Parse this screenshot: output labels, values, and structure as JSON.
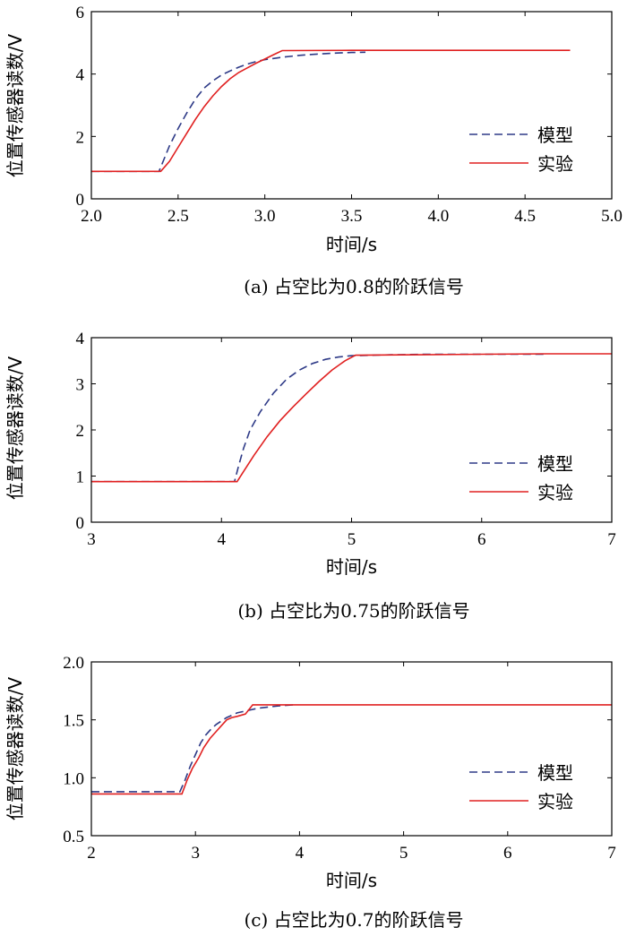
{
  "chart_data": [
    {
      "type": "line",
      "caption": "(a) 占空比为0.8的阶跃信号",
      "xlabel": "时间/s",
      "ylabel": "位置传感器读数/V",
      "xlim": [
        2.0,
        5.0
      ],
      "ylim": [
        0,
        6
      ],
      "xticks": [
        2.0,
        2.5,
        3.0,
        3.5,
        4.0,
        4.5,
        5.0
      ],
      "xtick_labels": [
        "2.0",
        "2.5",
        "3.0",
        "3.5",
        "4.0",
        "4.5",
        "5.0"
      ],
      "yticks": [
        0,
        2,
        4,
        6
      ],
      "ytick_labels": [
        "0",
        "2",
        "4",
        "6"
      ],
      "legend_position": "right",
      "grid": false,
      "series": [
        {
          "name": "模型",
          "color": "#2e3a87",
          "dash": true,
          "points": [
            [
              2.0,
              0.88
            ],
            [
              2.39,
              0.88
            ],
            [
              2.41,
              1.15
            ],
            [
              2.45,
              1.7
            ],
            [
              2.5,
              2.25
            ],
            [
              2.55,
              2.75
            ],
            [
              2.6,
              3.2
            ],
            [
              2.65,
              3.55
            ],
            [
              2.7,
              3.78
            ],
            [
              2.75,
              3.97
            ],
            [
              2.8,
              4.1
            ],
            [
              2.85,
              4.22
            ],
            [
              2.9,
              4.32
            ],
            [
              2.95,
              4.4
            ],
            [
              3.0,
              4.46
            ],
            [
              3.05,
              4.5
            ],
            [
              3.1,
              4.54
            ],
            [
              3.2,
              4.6
            ],
            [
              3.3,
              4.64
            ],
            [
              3.4,
              4.67
            ],
            [
              3.5,
              4.69
            ],
            [
              3.58,
              4.7
            ]
          ]
        },
        {
          "name": "实验",
          "color": "#e02020",
          "dash": false,
          "points": [
            [
              2.0,
              0.88
            ],
            [
              2.4,
              0.88
            ],
            [
              2.45,
              1.2
            ],
            [
              2.5,
              1.65
            ],
            [
              2.55,
              2.1
            ],
            [
              2.6,
              2.55
            ],
            [
              2.65,
              2.95
            ],
            [
              2.7,
              3.3
            ],
            [
              2.75,
              3.6
            ],
            [
              2.8,
              3.85
            ],
            [
              2.85,
              4.05
            ],
            [
              2.9,
              4.2
            ],
            [
              2.95,
              4.35
            ],
            [
              3.0,
              4.48
            ],
            [
              3.05,
              4.62
            ],
            [
              3.1,
              4.75
            ],
            [
              3.5,
              4.76
            ],
            [
              4.0,
              4.76
            ],
            [
              4.5,
              4.76
            ],
            [
              4.76,
              4.76
            ]
          ]
        }
      ]
    },
    {
      "type": "line",
      "caption": "(b) 占空比为0.75的阶跃信号",
      "xlabel": "时间/s",
      "ylabel": "位置传感器读数/V",
      "xlim": [
        3,
        7
      ],
      "ylim": [
        0,
        4
      ],
      "xticks": [
        3,
        4,
        5,
        6,
        7
      ],
      "xtick_labels": [
        "3",
        "4",
        "5",
        "6",
        "7"
      ],
      "yticks": [
        0,
        1,
        2,
        3,
        4
      ],
      "ytick_labels": [
        "0",
        "1",
        "2",
        "3",
        "4"
      ],
      "legend_position": "right",
      "grid": false,
      "series": [
        {
          "name": "模型",
          "color": "#2e3a87",
          "dash": true,
          "points": [
            [
              3.0,
              0.88
            ],
            [
              4.1,
              0.88
            ],
            [
              4.13,
              1.2
            ],
            [
              4.17,
              1.6
            ],
            [
              4.22,
              2.0
            ],
            [
              4.3,
              2.4
            ],
            [
              4.4,
              2.8
            ],
            [
              4.5,
              3.1
            ],
            [
              4.6,
              3.3
            ],
            [
              4.7,
              3.44
            ],
            [
              4.8,
              3.53
            ],
            [
              4.9,
              3.58
            ],
            [
              5.0,
              3.61
            ],
            [
              5.3,
              3.63
            ],
            [
              5.6,
              3.64
            ],
            [
              6.0,
              3.64
            ],
            [
              6.5,
              3.64
            ]
          ]
        },
        {
          "name": "实验",
          "color": "#e02020",
          "dash": false,
          "points": [
            [
              3.0,
              0.88
            ],
            [
              4.12,
              0.88
            ],
            [
              4.17,
              1.1
            ],
            [
              4.25,
              1.45
            ],
            [
              4.35,
              1.85
            ],
            [
              4.45,
              2.2
            ],
            [
              4.55,
              2.5
            ],
            [
              4.65,
              2.78
            ],
            [
              4.75,
              3.05
            ],
            [
              4.85,
              3.3
            ],
            [
              4.95,
              3.5
            ],
            [
              5.03,
              3.62
            ],
            [
              5.5,
              3.63
            ],
            [
              6.0,
              3.64
            ],
            [
              6.5,
              3.65
            ],
            [
              7.0,
              3.65
            ]
          ]
        }
      ]
    },
    {
      "type": "line",
      "caption": "(c) 占空比为0.7的阶跃信号",
      "xlabel": "时间/s",
      "ylabel": "位置传感器读数/V",
      "xlim": [
        2,
        7
      ],
      "ylim": [
        0.5,
        2.0
      ],
      "xticks": [
        2,
        3,
        4,
        5,
        6,
        7
      ],
      "xtick_labels": [
        "2",
        "3",
        "4",
        "5",
        "6",
        "7"
      ],
      "yticks": [
        0.5,
        1.0,
        1.5,
        2.0
      ],
      "ytick_labels": [
        "0.5",
        "1.0",
        "1.5",
        "2.0"
      ],
      "legend_position": "right",
      "grid": false,
      "series": [
        {
          "name": "模型",
          "color": "#2e3a87",
          "dash": true,
          "points": [
            [
              2.0,
              0.88
            ],
            [
              2.85,
              0.88
            ],
            [
              2.9,
              0.98
            ],
            [
              2.95,
              1.1
            ],
            [
              3.0,
              1.2
            ],
            [
              3.05,
              1.3
            ],
            [
              3.1,
              1.37
            ],
            [
              3.15,
              1.42
            ],
            [
              3.2,
              1.46
            ],
            [
              3.3,
              1.52
            ],
            [
              3.4,
              1.56
            ],
            [
              3.5,
              1.58
            ],
            [
              3.6,
              1.6
            ],
            [
              3.8,
              1.62
            ],
            [
              3.95,
              1.63
            ]
          ]
        },
        {
          "name": "实验",
          "color": "#e02020",
          "dash": false,
          "points": [
            [
              2.0,
              0.86
            ],
            [
              2.87,
              0.86
            ],
            [
              2.92,
              0.98
            ],
            [
              2.97,
              1.08
            ],
            [
              3.03,
              1.17
            ],
            [
              3.08,
              1.26
            ],
            [
              3.14,
              1.34
            ],
            [
              3.2,
              1.4
            ],
            [
              3.25,
              1.45
            ],
            [
              3.3,
              1.5
            ],
            [
              3.35,
              1.52
            ],
            [
              3.4,
              1.53
            ],
            [
              3.48,
              1.55
            ],
            [
              3.55,
              1.63
            ],
            [
              4.0,
              1.63
            ],
            [
              5.0,
              1.63
            ],
            [
              6.0,
              1.63
            ],
            [
              7.0,
              1.63
            ]
          ]
        }
      ]
    }
  ]
}
